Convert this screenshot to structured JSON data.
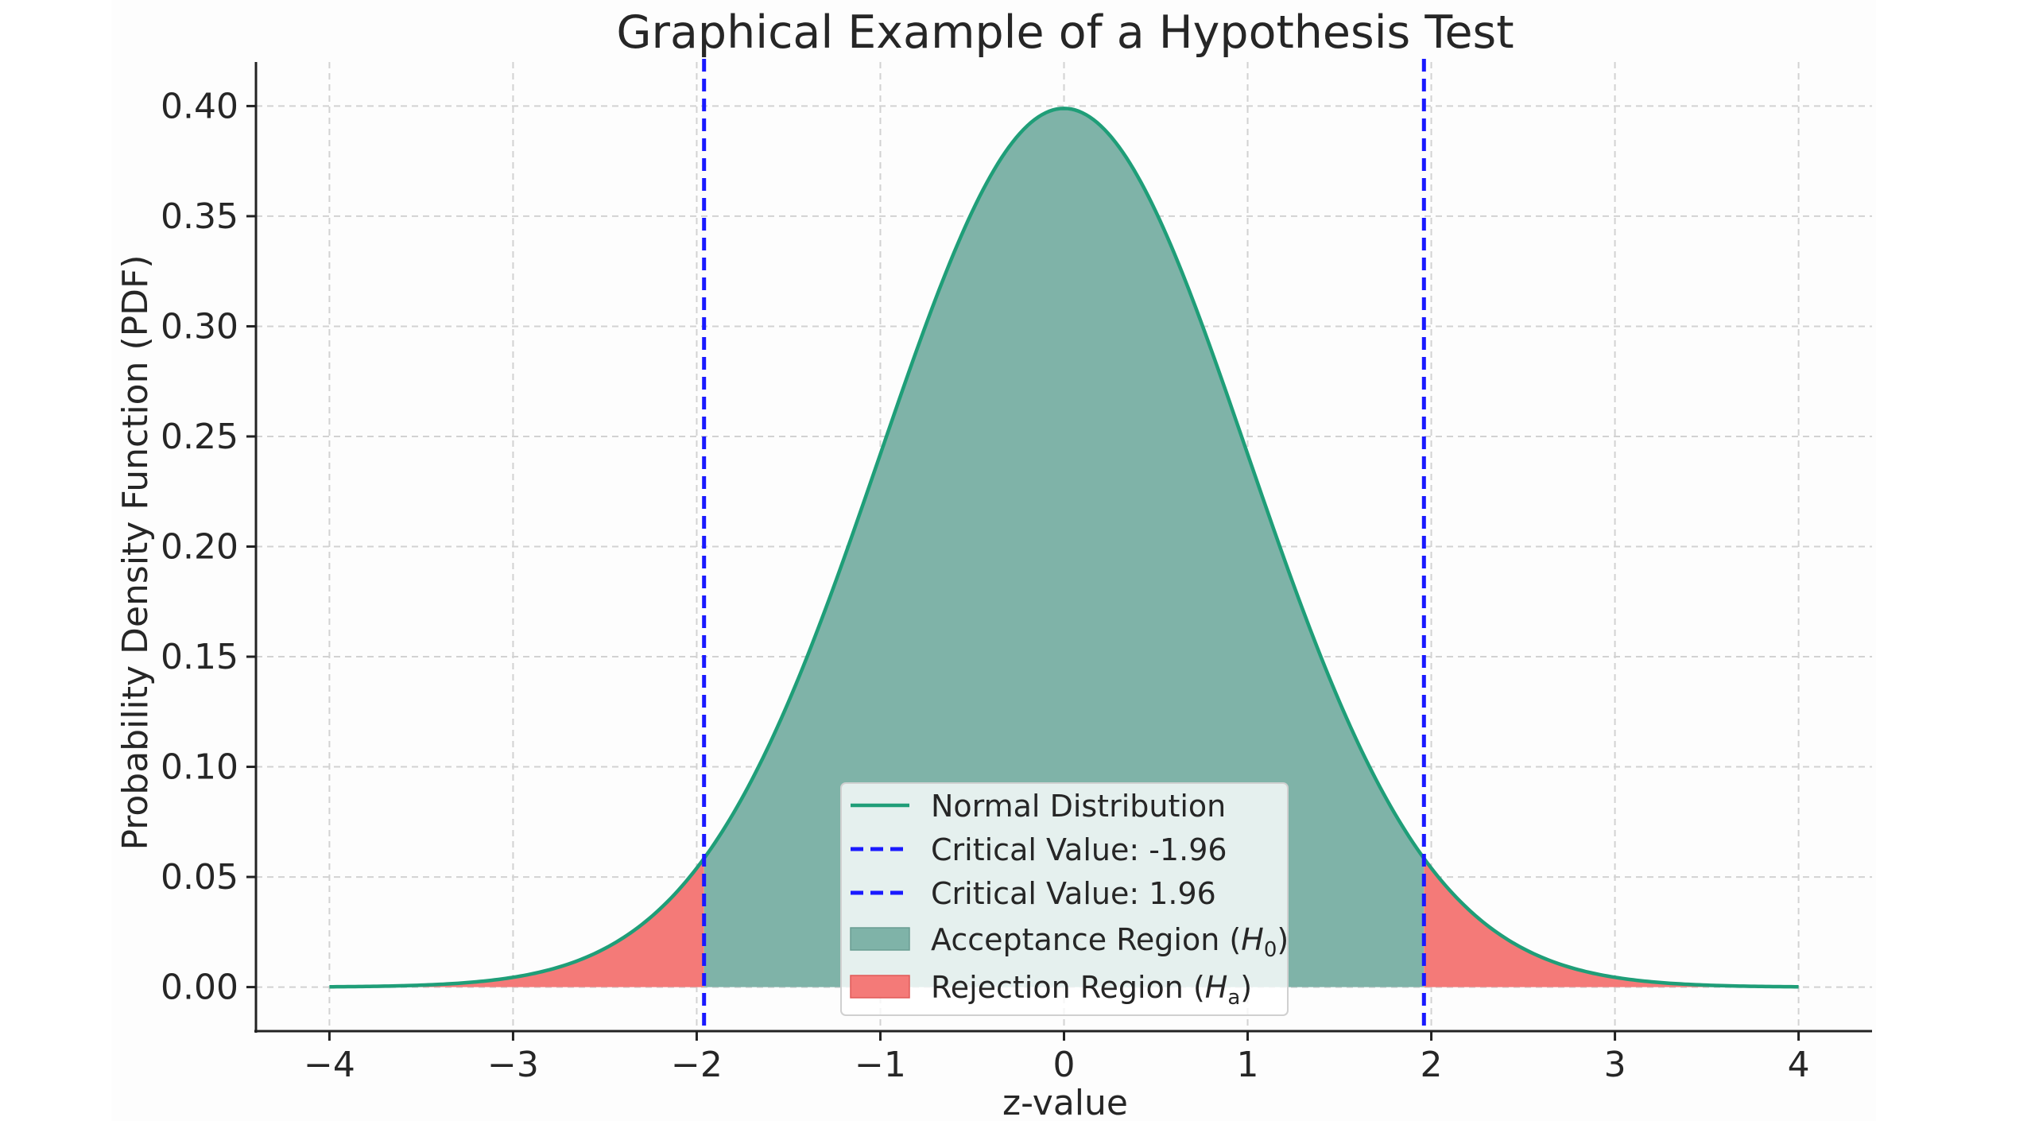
{
  "chart_data": {
    "type": "area",
    "title": "Graphical Example of a Hypothesis Test",
    "xlabel": "z-value",
    "ylabel": "Probability Density Function (PDF)",
    "xlim": [
      -4.4,
      4.4
    ],
    "ylim": [
      -0.02,
      0.42
    ],
    "xticks": [
      -4,
      -3,
      -2,
      -1,
      0,
      1,
      2,
      3,
      4
    ],
    "xtick_labels": [
      "−4",
      "−3",
      "−2",
      "−1",
      "0",
      "1",
      "2",
      "3",
      "4"
    ],
    "yticks": [
      0.0,
      0.05,
      0.1,
      0.15,
      0.2,
      0.25,
      0.3,
      0.35,
      0.4
    ],
    "ytick_labels": [
      "0.00",
      "0.05",
      "0.10",
      "0.15",
      "0.20",
      "0.25",
      "0.30",
      "0.35",
      "0.40"
    ],
    "grid": true,
    "legend_position": "lower-center",
    "series": [
      {
        "name": "Normal Distribution",
        "kind": "line",
        "color": "#1f9e78",
        "x": [
          -4.0,
          -3.5,
          -3.0,
          -2.5,
          -2.0,
          -1.96,
          -1.5,
          -1.0,
          -0.5,
          0.0,
          0.5,
          1.0,
          1.5,
          1.96,
          2.0,
          2.5,
          3.0,
          3.5,
          4.0
        ],
        "y": [
          0.0001,
          0.0009,
          0.0044,
          0.0175,
          0.054,
          0.0584,
          0.1295,
          0.242,
          0.3521,
          0.3989,
          0.3521,
          0.242,
          0.1295,
          0.0584,
          0.054,
          0.0175,
          0.0044,
          0.0009,
          0.0001
        ]
      }
    ],
    "critical_lines": [
      {
        "name": "Critical Value: -1.96",
        "x": -1.96,
        "color": "#1a1aff"
      },
      {
        "name": "Critical Value: 1.96",
        "x": 1.96,
        "color": "#1a1aff"
      }
    ],
    "regions": [
      {
        "name_main": "Acceptance Region (",
        "name_sym": "H",
        "name_sub": "0",
        "name_tail": ")",
        "from": -1.96,
        "to": 1.96,
        "color": "#7fb3a8"
      },
      {
        "name_main": "Rejection Region (",
        "name_sym": "H",
        "name_sub": "a",
        "name_tail": ")",
        "from": -4.0,
        "to": -1.96,
        "also_from": 1.96,
        "also_to": 4.0,
        "color": "#f47a78"
      }
    ]
  }
}
